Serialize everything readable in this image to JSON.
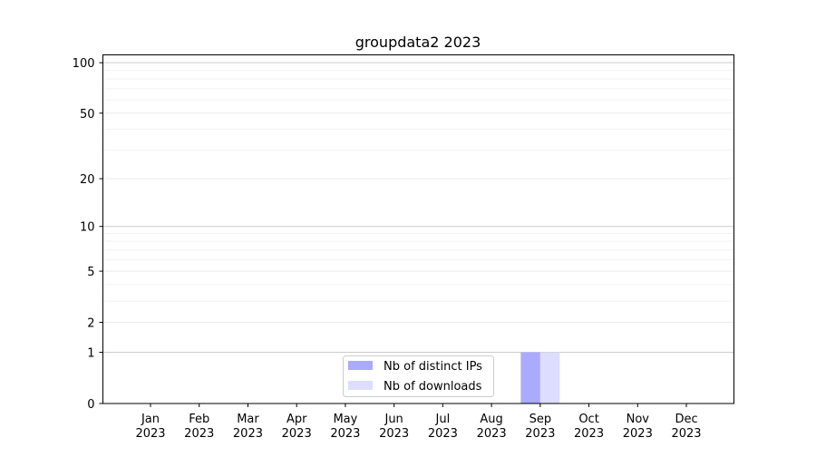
{
  "chart_data": {
    "type": "bar",
    "title": "groupdata2 2023",
    "xlabel": "",
    "ylabel": "",
    "yscale": "log(1+y)",
    "ylim": [
      0,
      112
    ],
    "yticks": [
      0,
      1,
      2,
      5,
      10,
      20,
      50,
      100
    ],
    "ytick_labels": [
      "0",
      "1",
      "2",
      "5",
      "10",
      "20",
      "50",
      "100"
    ],
    "categories": [
      "Jan\n2023",
      "Feb\n2023",
      "Mar\n2023",
      "Apr\n2023",
      "May\n2023",
      "Jun\n2023",
      "Jul\n2023",
      "Aug\n2023",
      "Sep\n2023",
      "Oct\n2023",
      "Nov\n2023",
      "Dec\n2023"
    ],
    "category_lines": [
      [
        "Jan",
        "2023"
      ],
      [
        "Feb",
        "2023"
      ],
      [
        "Mar",
        "2023"
      ],
      [
        "Apr",
        "2023"
      ],
      [
        "May",
        "2023"
      ],
      [
        "Jun",
        "2023"
      ],
      [
        "Jul",
        "2023"
      ],
      [
        "Aug",
        "2023"
      ],
      [
        "Sep",
        "2023"
      ],
      [
        "Oct",
        "2023"
      ],
      [
        "Nov",
        "2023"
      ],
      [
        "Dec",
        "2023"
      ]
    ],
    "series": [
      {
        "name": "Nb of distinct IPs",
        "color": "#aaaaff",
        "values": [
          0,
          0,
          0,
          0,
          0,
          0,
          0,
          0,
          1,
          0,
          0,
          0
        ]
      },
      {
        "name": "Nb of downloads",
        "color": "#ddddff",
        "values": [
          0,
          0,
          0,
          0,
          0,
          0,
          0,
          0,
          1,
          0,
          0,
          0
        ]
      }
    ],
    "grid": true,
    "legend": "lower-center"
  }
}
